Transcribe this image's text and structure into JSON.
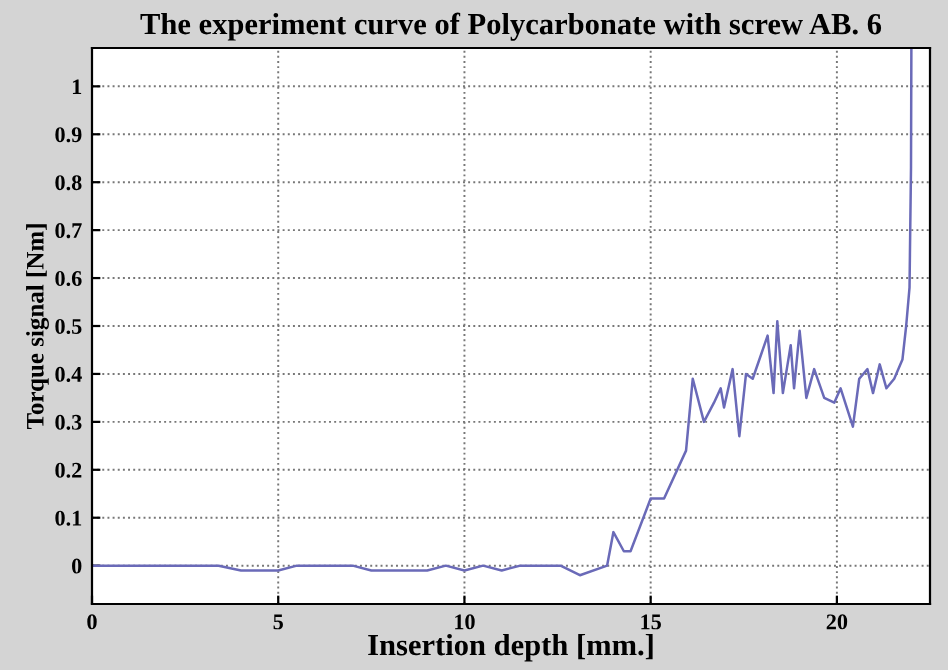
{
  "chart_data": {
    "type": "line",
    "title": "The experiment curve of Polycarbonate with screw AB. 6",
    "xlabel": "Insertion depth [mm.]",
    "ylabel": "Torque signal [Nm]",
    "series": [
      {
        "color": "#6a6ab8",
        "x": [
          0,
          3.4,
          4.0,
          4.5,
          5.0,
          5.5,
          6.0,
          7.0,
          7.5,
          8.0,
          9.0,
          9.5,
          10.0,
          10.5,
          11.0,
          11.5,
          12.58,
          13.1,
          13.83,
          14.0,
          14.28,
          14.46,
          15.0,
          15.36,
          15.95,
          16.13,
          16.43,
          16.7,
          16.88,
          16.97,
          17.2,
          17.38,
          17.56,
          17.74,
          18.14,
          18.3,
          18.4,
          18.55,
          18.76,
          18.85,
          19.0,
          19.18,
          19.39,
          19.66,
          19.93,
          20.1,
          20.43,
          20.6,
          20.82,
          20.97,
          21.15,
          21.33,
          21.54,
          21.76,
          21.86,
          21.95,
          21.99,
          22.0
        ],
        "values": [
          0,
          0,
          -0.01,
          -0.01,
          -0.01,
          0,
          0,
          0,
          -0.01,
          -0.01,
          -0.01,
          0,
          -0.01,
          0,
          -0.01,
          0,
          0,
          -0.02,
          0,
          0.07,
          0.03,
          0.03,
          0.14,
          0.14,
          0.24,
          0.39,
          0.3,
          0.34,
          0.37,
          0.33,
          0.41,
          0.27,
          0.4,
          0.39,
          0.48,
          0.36,
          0.51,
          0.36,
          0.46,
          0.37,
          0.49,
          0.35,
          0.41,
          0.35,
          0.34,
          0.37,
          0.29,
          0.39,
          0.41,
          0.36,
          0.42,
          0.37,
          0.39,
          0.43,
          0.5,
          0.58,
          0.83,
          1.08
        ]
      }
    ],
    "xlim": [
      0,
      22.5
    ],
    "ylim": [
      -0.08,
      1.08
    ],
    "xticks": [
      0,
      5,
      10,
      15,
      20
    ],
    "yticks": [
      0,
      0.1,
      0.2,
      0.3,
      0.4,
      0.5,
      0.6,
      0.7,
      0.8,
      0.9,
      1
    ],
    "grid": true,
    "legend": false,
    "marker": "none",
    "line_style": "solid"
  }
}
